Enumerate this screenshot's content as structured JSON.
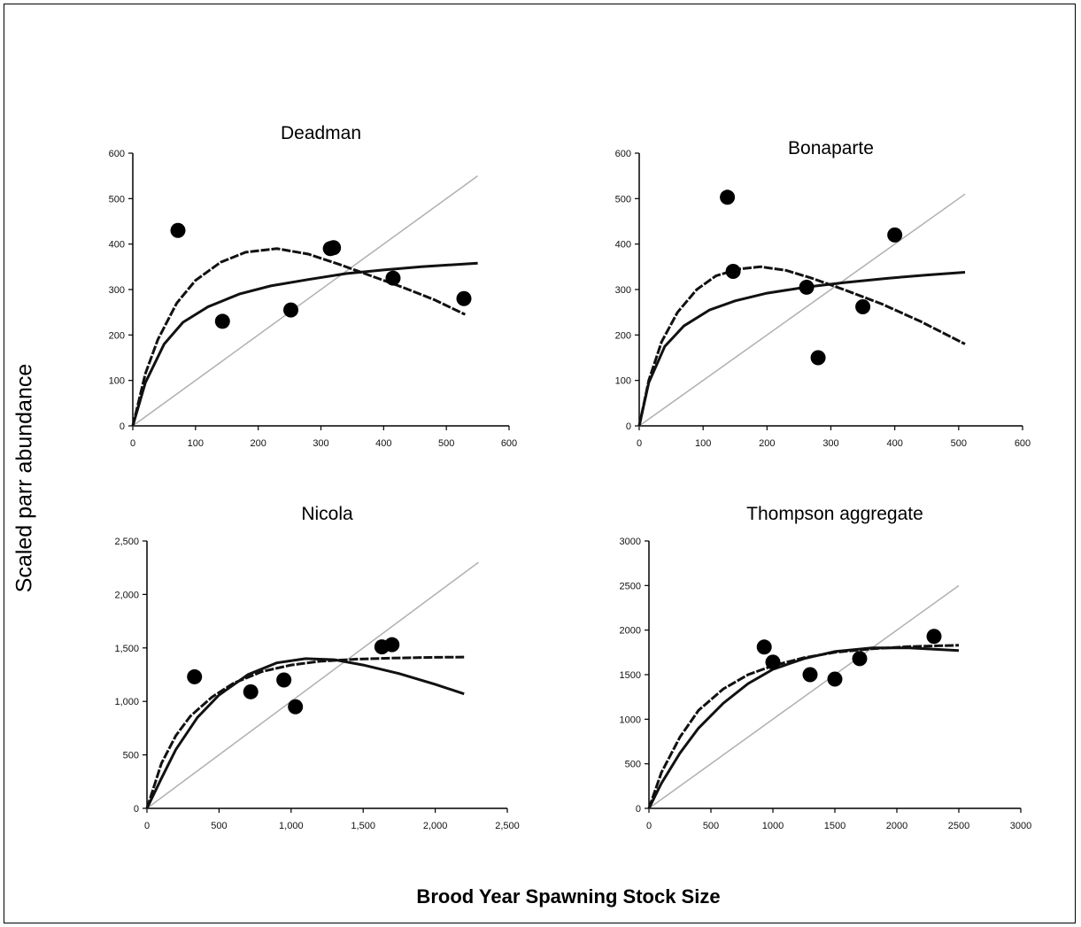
{
  "figure": {
    "ylabel": "Scaled parr abundance",
    "xlabel": "Brood Year Spawning Stock Size"
  },
  "chart_data": [
    {
      "type": "scatter",
      "title": "Deadman",
      "xlim": [
        0,
        600
      ],
      "ylim": [
        0,
        600
      ],
      "xticks": [
        "0",
        "100",
        "200",
        "300",
        "400",
        "500",
        "600"
      ],
      "yticks": [
        "0",
        "100",
        "200",
        "300",
        "400",
        "500",
        "600"
      ],
      "points": [
        [
          72,
          430
        ],
        [
          143,
          230
        ],
        [
          252,
          255
        ],
        [
          315,
          390
        ],
        [
          320,
          392
        ],
        [
          415,
          325
        ],
        [
          528,
          280
        ]
      ],
      "replacement_line": [
        [
          0,
          0
        ],
        [
          550,
          550
        ]
      ],
      "curve_a": [
        [
          0,
          0
        ],
        [
          20,
          115
        ],
        [
          40,
          190
        ],
        [
          70,
          270
        ],
        [
          100,
          320
        ],
        [
          140,
          360
        ],
        [
          180,
          382
        ],
        [
          230,
          390
        ],
        [
          280,
          378
        ],
        [
          330,
          355
        ],
        [
          380,
          330
        ],
        [
          430,
          305
        ],
        [
          480,
          278
        ],
        [
          530,
          245
        ]
      ],
      "curve_b": [
        [
          0,
          0
        ],
        [
          20,
          95
        ],
        [
          50,
          180
        ],
        [
          80,
          228
        ],
        [
          120,
          262
        ],
        [
          170,
          290
        ],
        [
          220,
          308
        ],
        [
          280,
          322
        ],
        [
          340,
          335
        ],
        [
          400,
          343
        ],
        [
          460,
          350
        ],
        [
          550,
          358
        ]
      ]
    },
    {
      "type": "scatter",
      "title": "Bonaparte",
      "xlim": [
        0,
        600
      ],
      "ylim": [
        0,
        600
      ],
      "xticks": [
        "0",
        "100",
        "200",
        "300",
        "400",
        "500",
        "600"
      ],
      "yticks": [
        "0",
        "100",
        "200",
        "300",
        "400",
        "500",
        "600"
      ],
      "points": [
        [
          138,
          503
        ],
        [
          147,
          340
        ],
        [
          262,
          305
        ],
        [
          280,
          150
        ],
        [
          350,
          262
        ],
        [
          400,
          420
        ]
      ],
      "replacement_line": [
        [
          0,
          0
        ],
        [
          510,
          510
        ]
      ],
      "curve_a": [
        [
          0,
          0
        ],
        [
          15,
          100
        ],
        [
          35,
          185
        ],
        [
          60,
          250
        ],
        [
          90,
          300
        ],
        [
          120,
          330
        ],
        [
          155,
          345
        ],
        [
          190,
          350
        ],
        [
          230,
          342
        ],
        [
          270,
          325
        ],
        [
          320,
          300
        ],
        [
          380,
          268
        ],
        [
          440,
          230
        ],
        [
          510,
          180
        ]
      ],
      "curve_b": [
        [
          0,
          0
        ],
        [
          15,
          95
        ],
        [
          40,
          175
        ],
        [
          70,
          220
        ],
        [
          110,
          255
        ],
        [
          150,
          275
        ],
        [
          200,
          292
        ],
        [
          260,
          305
        ],
        [
          320,
          315
        ],
        [
          390,
          325
        ],
        [
          450,
          332
        ],
        [
          510,
          338
        ]
      ]
    },
    {
      "type": "scatter",
      "title": "Nicola",
      "xlim": [
        0,
        2500
      ],
      "ylim": [
        0,
        2500
      ],
      "xticks": [
        "0",
        "500",
        "1,000",
        "1,500",
        "2,000",
        "2,500"
      ],
      "yticks": [
        "0",
        "500",
        "1,000",
        "1,500",
        "2,000",
        "2,500"
      ],
      "points": [
        [
          330,
          1230
        ],
        [
          720,
          1090
        ],
        [
          950,
          1200
        ],
        [
          1030,
          950
        ],
        [
          1630,
          1510
        ],
        [
          1700,
          1530
        ]
      ],
      "replacement_line": [
        [
          0,
          0
        ],
        [
          2300,
          2300
        ]
      ],
      "curve_a": [
        [
          0,
          0
        ],
        [
          100,
          420
        ],
        [
          200,
          680
        ],
        [
          300,
          860
        ],
        [
          450,
          1040
        ],
        [
          600,
          1170
        ],
        [
          800,
          1280
        ],
        [
          1000,
          1340
        ],
        [
          1200,
          1375
        ],
        [
          1450,
          1395
        ],
        [
          1700,
          1405
        ],
        [
          2000,
          1412
        ],
        [
          2200,
          1415
        ]
      ],
      "curve_b": [
        [
          0,
          0
        ],
        [
          100,
          280
        ],
        [
          200,
          550
        ],
        [
          350,
          850
        ],
        [
          500,
          1060
        ],
        [
          700,
          1250
        ],
        [
          900,
          1360
        ],
        [
          1100,
          1400
        ],
        [
          1300,
          1390
        ],
        [
          1500,
          1340
        ],
        [
          1750,
          1260
        ],
        [
          2000,
          1160
        ],
        [
          2200,
          1070
        ]
      ]
    },
    {
      "type": "scatter",
      "title": "Thompson aggregate",
      "xlim": [
        0,
        3000
      ],
      "ylim": [
        0,
        3000
      ],
      "xticks": [
        "0",
        "500",
        "1000",
        "1500",
        "2000",
        "2500",
        "3000"
      ],
      "yticks": [
        "0",
        "500",
        "1000",
        "1500",
        "2000",
        "2500",
        "3000"
      ],
      "points": [
        [
          930,
          1810
        ],
        [
          1000,
          1640
        ],
        [
          1300,
          1500
        ],
        [
          1500,
          1450
        ],
        [
          1700,
          1680
        ],
        [
          2300,
          1930
        ]
      ],
      "replacement_line": [
        [
          0,
          0
        ],
        [
          2500,
          2500
        ]
      ],
      "curve_a": [
        [
          0,
          0
        ],
        [
          100,
          400
        ],
        [
          250,
          800
        ],
        [
          400,
          1100
        ],
        [
          600,
          1340
        ],
        [
          800,
          1500
        ],
        [
          1000,
          1600
        ],
        [
          1250,
          1690
        ],
        [
          1500,
          1750
        ],
        [
          1800,
          1790
        ],
        [
          2100,
          1815
        ],
        [
          2500,
          1830
        ]
      ],
      "curve_b": [
        [
          0,
          0
        ],
        [
          100,
          280
        ],
        [
          250,
          620
        ],
        [
          400,
          900
        ],
        [
          600,
          1180
        ],
        [
          800,
          1400
        ],
        [
          1000,
          1560
        ],
        [
          1250,
          1680
        ],
        [
          1500,
          1760
        ],
        [
          1800,
          1800
        ],
        [
          2100,
          1800
        ],
        [
          2500,
          1770
        ]
      ]
    }
  ]
}
